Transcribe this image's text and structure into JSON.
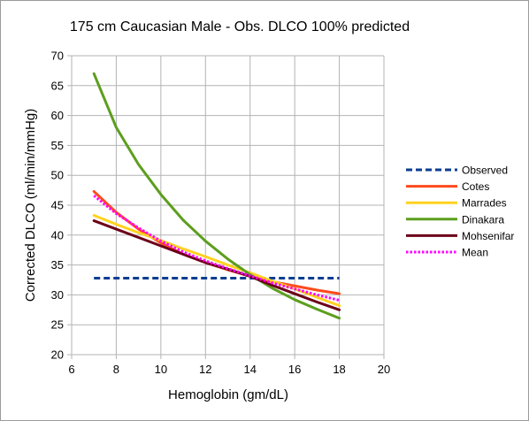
{
  "chart_data": {
    "type": "line",
    "title": "175 cm Caucasian Male - Obs. DLCO 100% predicted",
    "xlabel": "Hemoglobin (gm/dL)",
    "ylabel": "Corrected DLCO (ml/min/mmHg)",
    "xlim": [
      6,
      20
    ],
    "ylim": [
      20,
      70
    ],
    "xticks": [
      "6",
      "8",
      "10",
      "12",
      "14",
      "16",
      "18",
      "20"
    ],
    "yticks": [
      "20",
      "25",
      "30",
      "35",
      "40",
      "45",
      "50",
      "55",
      "60",
      "65",
      "70"
    ],
    "grid": true,
    "legend_position": "right",
    "x": [
      7,
      8,
      9,
      10,
      11,
      12,
      13,
      14,
      15,
      16,
      17,
      18
    ],
    "series": [
      {
        "name": "Observed",
        "color": "#0b3d91",
        "style": "dashed",
        "values": [
          32.8,
          32.8,
          32.8,
          32.8,
          32.8,
          32.8,
          32.8,
          32.8,
          32.8,
          32.8,
          32.8,
          32.8
        ]
      },
      {
        "name": "Cotes",
        "color": "#ff4a1c",
        "style": "solid",
        "values": [
          47.3,
          43.8,
          41.0,
          38.7,
          36.8,
          35.4,
          34.2,
          33.1,
          32.2,
          31.5,
          30.8,
          30.2
        ]
      },
      {
        "name": "Marrades",
        "color": "#ffd21f",
        "style": "solid",
        "values": [
          43.3,
          41.8,
          40.4,
          39.1,
          37.7,
          36.4,
          35.0,
          33.7,
          32.3,
          31.0,
          29.6,
          28.2
        ]
      },
      {
        "name": "Dinakara",
        "color": "#5c9e1e",
        "style": "solid",
        "values": [
          67.0,
          58.0,
          51.8,
          46.8,
          42.5,
          39.0,
          36.0,
          33.4,
          31.1,
          29.2,
          27.6,
          26.1
        ]
      },
      {
        "name": "Mohsenifar",
        "color": "#6b0018",
        "style": "solid",
        "values": [
          42.4,
          41.0,
          39.6,
          38.2,
          36.8,
          35.4,
          34.3,
          33.1,
          31.6,
          30.2,
          28.8,
          27.5
        ]
      },
      {
        "name": "Mean",
        "color": "#ff00ff",
        "style": "dotted",
        "values": [
          46.6,
          43.6,
          41.2,
          39.0,
          37.2,
          35.7,
          34.4,
          33.2,
          32.0,
          31.0,
          30.0,
          29.1
        ]
      }
    ]
  }
}
